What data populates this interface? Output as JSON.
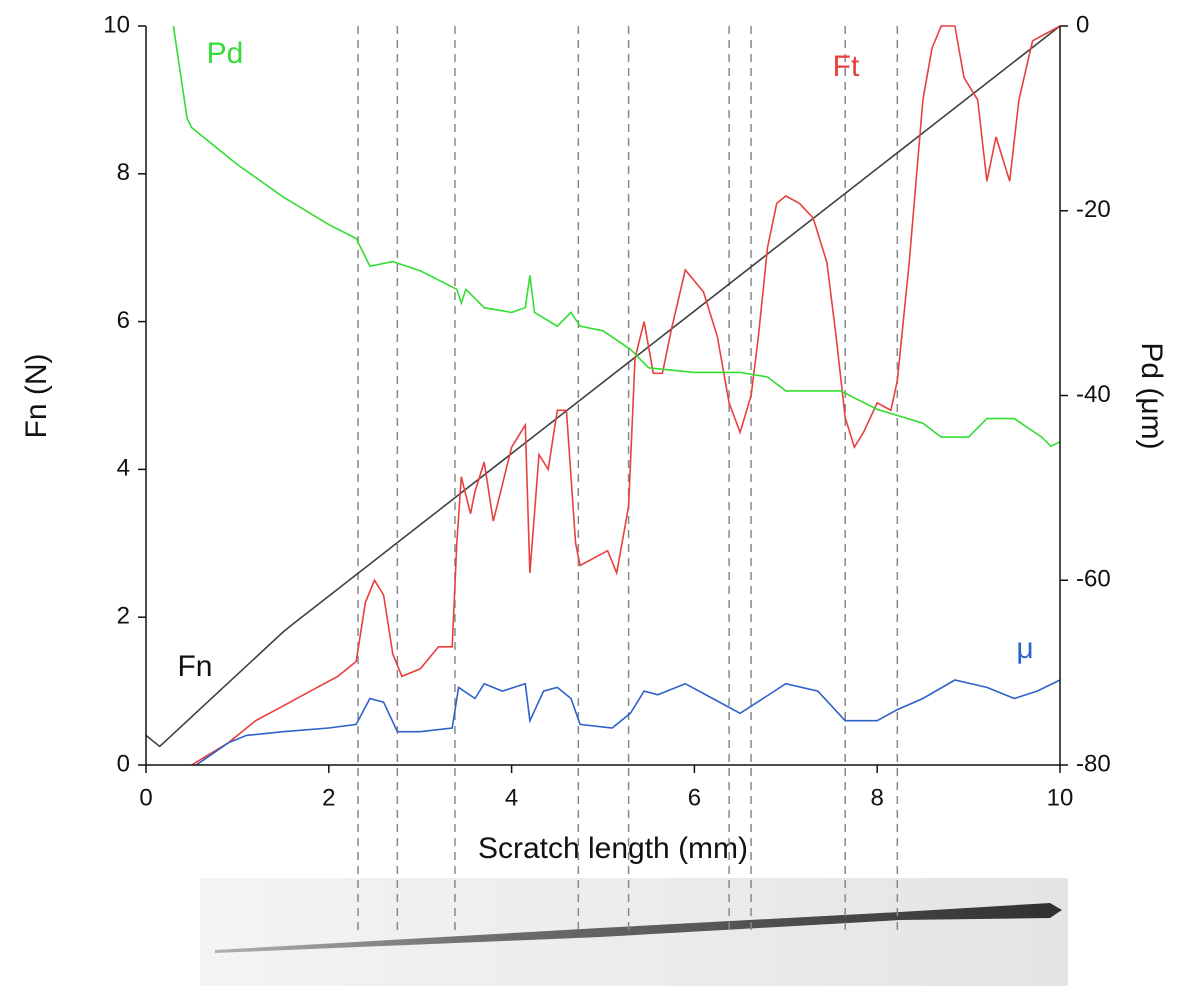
{
  "chart_data": {
    "type": "line",
    "xlabel": "Scratch length (mm)",
    "ylabel": "Fn (N)",
    "y2label": "Pd (μm)",
    "xlim": [
      0,
      10
    ],
    "xticks": [
      0,
      2,
      4,
      6,
      8,
      10
    ],
    "ylim": [
      0,
      10
    ],
    "yticks": [
      0,
      2,
      4,
      6,
      8,
      10
    ],
    "y2lim": [
      -80,
      0
    ],
    "y2ticks": [
      -80,
      -60,
      -40,
      -20,
      0
    ],
    "vlines": [
      2.32,
      2.75,
      3.38,
      4.73,
      5.28,
      6.38,
      6.62,
      7.65,
      8.22
    ],
    "series": [
      {
        "name": "Fn",
        "color": "#404040",
        "axis": "y",
        "x": [
          0,
          0.15,
          1.5,
          1.6,
          10
        ],
        "values": [
          0.4,
          0.25,
          1.8,
          1.9,
          10
        ]
      },
      {
        "name": "Ft",
        "color": "#e8403c",
        "axis": "y",
        "x": [
          0.5,
          0.9,
          1.2,
          1.5,
          1.8,
          2.1,
          2.3,
          2.4,
          2.5,
          2.6,
          2.7,
          2.8,
          3.0,
          3.2,
          3.35,
          3.4,
          3.45,
          3.55,
          3.6,
          3.7,
          3.8,
          3.9,
          4.0,
          4.1,
          4.15,
          4.2,
          4.3,
          4.4,
          4.5,
          4.6,
          4.7,
          4.75,
          4.9,
          5.05,
          5.15,
          5.28,
          5.35,
          5.45,
          5.55,
          5.65,
          5.75,
          5.9,
          6.1,
          6.25,
          6.38,
          6.5,
          6.62,
          6.7,
          6.8,
          6.9,
          7.0,
          7.15,
          7.3,
          7.45,
          7.55,
          7.65,
          7.75,
          7.85,
          8.0,
          8.15,
          8.22,
          8.35,
          8.5,
          8.6,
          8.7,
          8.85,
          8.95,
          9.1,
          9.2,
          9.3,
          9.45,
          9.55,
          9.7,
          10
        ],
        "values": [
          0,
          0.3,
          0.6,
          0.8,
          1.0,
          1.2,
          1.4,
          2.2,
          2.5,
          2.3,
          1.5,
          1.2,
          1.3,
          1.6,
          1.6,
          3.0,
          3.9,
          3.4,
          3.7,
          4.1,
          3.3,
          3.8,
          4.3,
          4.5,
          4.6,
          2.6,
          4.2,
          4.0,
          4.8,
          4.8,
          3.0,
          2.7,
          2.8,
          2.9,
          2.6,
          3.5,
          5.5,
          6.0,
          5.3,
          5.3,
          5.9,
          6.7,
          6.4,
          5.8,
          4.9,
          4.5,
          5.0,
          5.8,
          7.0,
          7.6,
          7.7,
          7.6,
          7.4,
          6.8,
          5.8,
          4.7,
          4.3,
          4.5,
          4.9,
          4.8,
          5.2,
          6.8,
          9.0,
          9.7,
          10,
          10,
          9.3,
          9.0,
          7.9,
          8.5,
          7.9,
          9.0,
          9.8,
          10
        ]
      },
      {
        "name": "μ",
        "color": "#2f62c8",
        "axis": "y",
        "x": [
          0.55,
          0.9,
          1.1,
          1.5,
          2.0,
          2.3,
          2.45,
          2.6,
          2.75,
          3.0,
          3.35,
          3.42,
          3.6,
          3.7,
          3.9,
          4.15,
          4.2,
          4.35,
          4.5,
          4.65,
          4.75,
          5.1,
          5.3,
          5.45,
          5.6,
          5.9,
          6.2,
          6.5,
          6.75,
          7.0,
          7.35,
          7.65,
          8.0,
          8.22,
          8.5,
          8.85,
          9.2,
          9.5,
          9.75,
          10
        ],
        "values": [
          0,
          0.3,
          0.4,
          0.45,
          0.5,
          0.55,
          0.9,
          0.85,
          0.45,
          0.45,
          0.5,
          1.05,
          0.9,
          1.1,
          1.0,
          1.1,
          0.6,
          1.0,
          1.05,
          0.9,
          0.55,
          0.5,
          0.7,
          1.0,
          0.95,
          1.1,
          0.9,
          0.7,
          0.9,
          1.1,
          1.0,
          0.6,
          0.6,
          0.75,
          0.9,
          1.15,
          1.05,
          0.9,
          1.0,
          1.15
        ]
      },
      {
        "name": "Pd",
        "color": "#33dd33",
        "axis": "y2",
        "x": [
          0.3,
          0.45,
          0.5,
          1.0,
          1.5,
          2.0,
          2.3,
          2.45,
          2.7,
          3.0,
          3.4,
          3.45,
          3.5,
          3.7,
          4.0,
          4.15,
          4.2,
          4.25,
          4.5,
          4.65,
          4.75,
          5.0,
          5.3,
          5.5,
          6.0,
          6.5,
          6.8,
          7.0,
          7.6,
          8.0,
          8.5,
          8.7,
          9.0,
          9.2,
          9.5,
          9.8,
          9.9,
          10
        ],
        "values": [
          0,
          -10,
          -11,
          -15,
          -18.5,
          -21.5,
          -23,
          -26,
          -25.5,
          -26.5,
          -28.5,
          -30,
          -28.5,
          -30.5,
          -31,
          -30.5,
          -27,
          -31,
          -32.5,
          -31,
          -32.5,
          -33,
          -35,
          -37,
          -37.5,
          -37.5,
          -38,
          -39.5,
          -39.5,
          -41.5,
          -43,
          -44.5,
          -44.5,
          -42.5,
          -42.5,
          -44.5,
          -45.5,
          -45
        ]
      }
    ]
  }
}
